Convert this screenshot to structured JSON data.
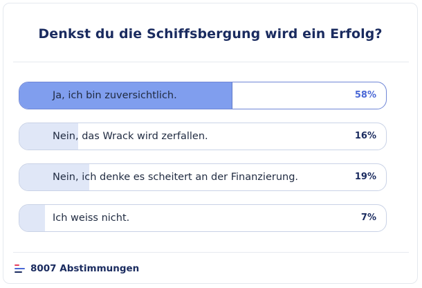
{
  "poll": {
    "question": "Denkst du die Schiffsbergung wird ein Erfolg?",
    "options": [
      {
        "label": "Ja, ich bin zuversichtlich.",
        "percent_text": "58%",
        "percent": 58,
        "selected": true
      },
      {
        "label": "Nein, das Wrack wird zerfallen.",
        "percent_text": "16%",
        "percent": 16,
        "selected": false
      },
      {
        "label": "Nein, ich denke es scheitert an der Finanzierung.",
        "percent_text": "19%",
        "percent": 19,
        "selected": false
      },
      {
        "label": "Ich weiss nicht.",
        "percent_text": "7%",
        "percent": 7,
        "selected": false
      }
    ],
    "votes_text": "8007 Abstimmungen"
  },
  "icons": {
    "footer_icon": "poll-bars-icon"
  },
  "colors": {
    "title": "#1a2b5f",
    "selected_fill": "#809eee",
    "unselected_fill": "#e0e7f7",
    "selected_percent": "#4a68d6",
    "icon_bars": [
      "#e63b5b",
      "#4a68d6",
      "#1a2b5f"
    ]
  }
}
